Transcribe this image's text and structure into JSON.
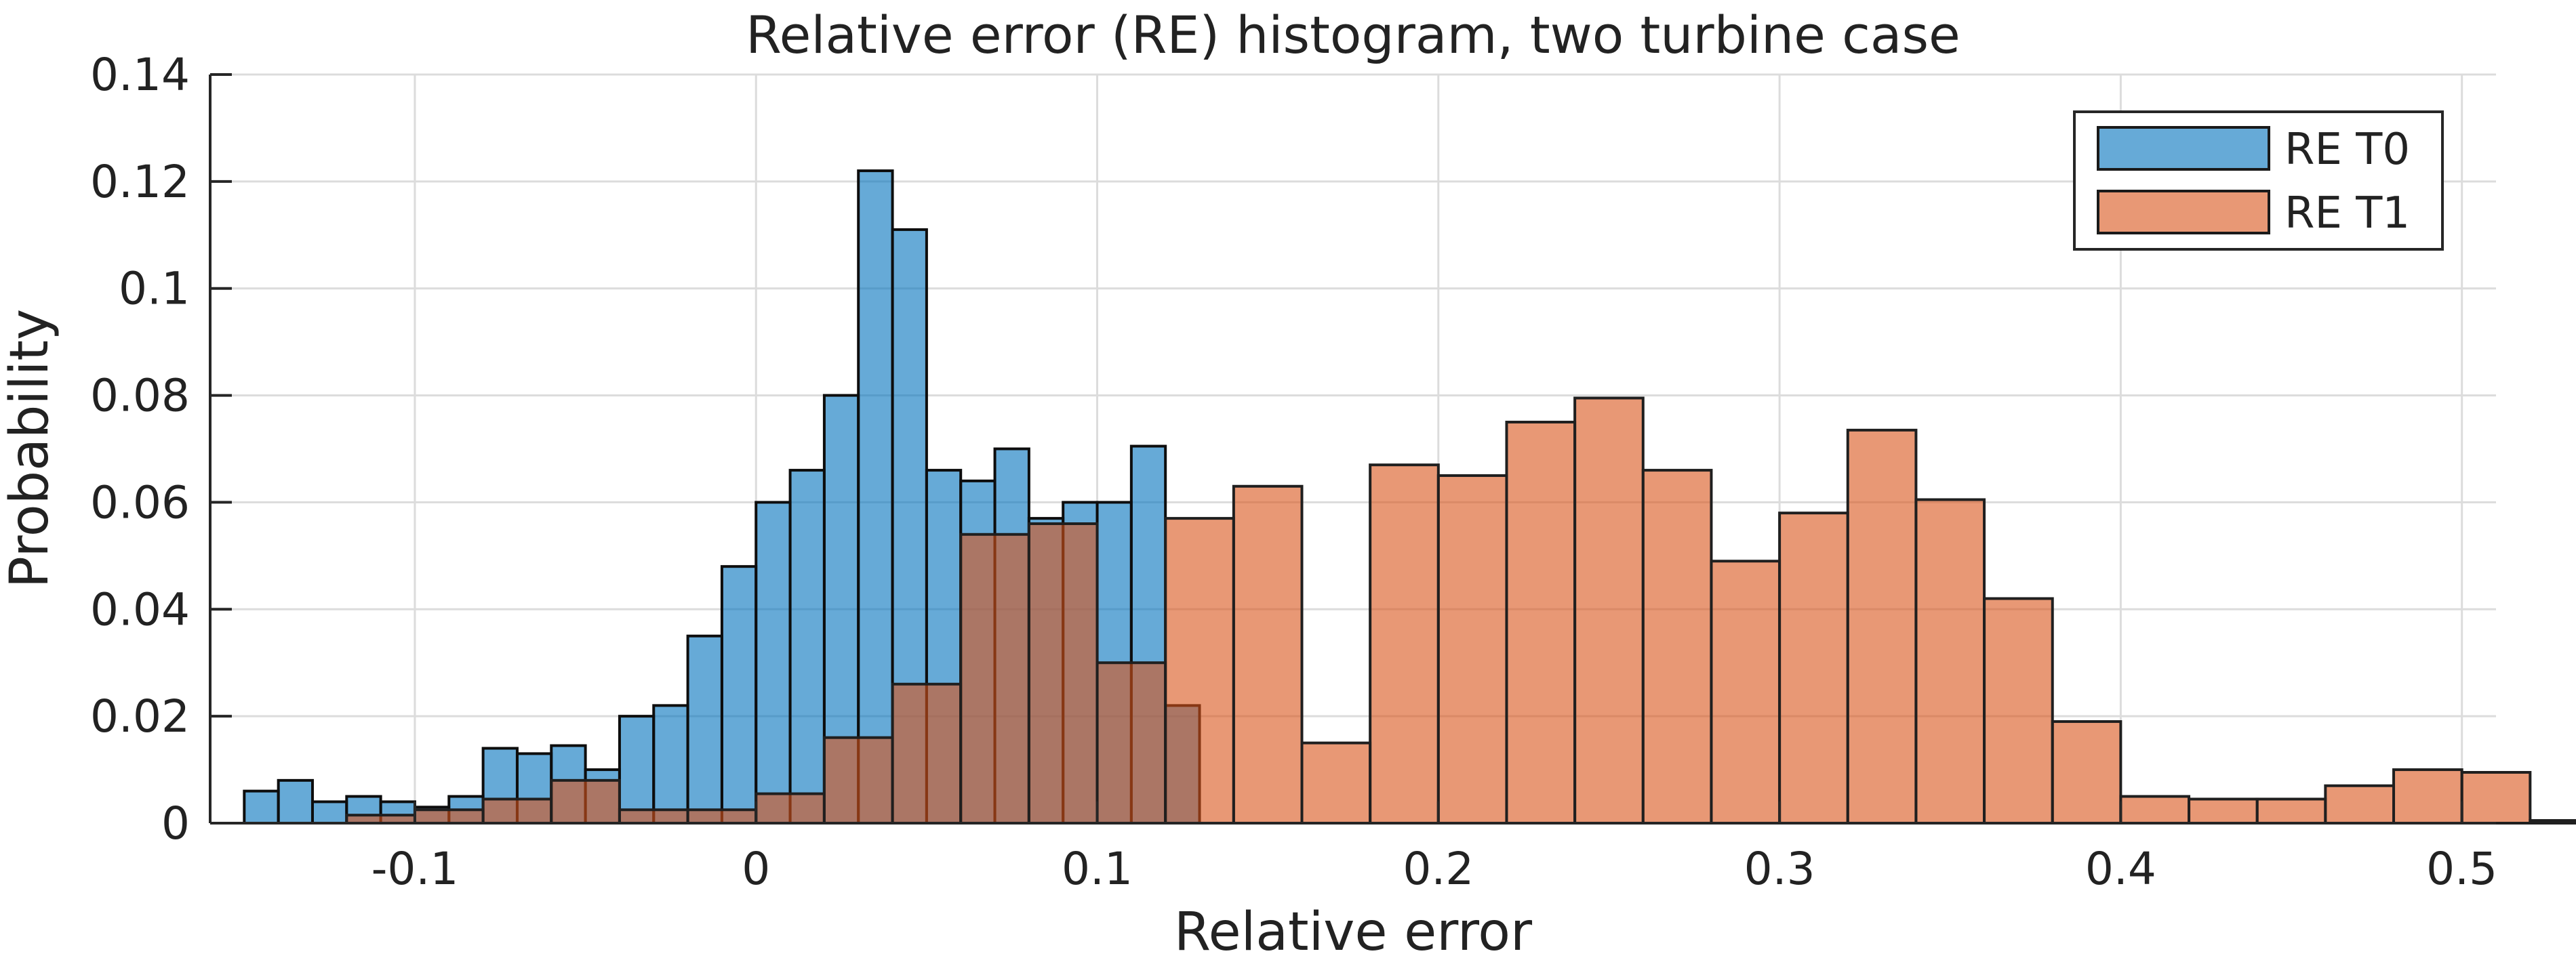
{
  "chart_data": {
    "type": "bar",
    "title": "Relative error (RE) histogram, two turbine case",
    "xlabel": "Relative error",
    "ylabel": "Probability",
    "xlim": [
      -0.16,
      0.51
    ],
    "ylim": [
      0,
      0.14
    ],
    "xticks": [
      -0.1,
      0,
      0.1,
      0.2,
      0.3,
      0.4,
      0.5
    ],
    "xtick_labels": [
      "-0.1",
      "0",
      "0.1",
      "0.2",
      "0.3",
      "0.4",
      "0.5"
    ],
    "yticks": [
      0,
      0.02,
      0.04,
      0.06,
      0.08,
      0.1,
      0.12,
      0.14
    ],
    "ytick_labels": [
      "0",
      "0.02",
      "0.04",
      "0.06",
      "0.08",
      "0.1",
      "0.12",
      "0.14"
    ],
    "grid": true,
    "legend_position": "top-right",
    "series": [
      {
        "name": "RE T0",
        "color": "#0072BD",
        "bin_width": 0.01,
        "bin_edges_start": -0.15,
        "values": [
          0.006,
          0.008,
          0.004,
          0.005,
          0.004,
          0.003,
          0.005,
          0.014,
          0.013,
          0.0145,
          0.01,
          0.02,
          0.022,
          0.035,
          0.048,
          0.06,
          0.066,
          0.08,
          0.122,
          0.111,
          0.066,
          0.064,
          0.07,
          0.057,
          0.06,
          0.06,
          0.0705,
          0.022
        ]
      },
      {
        "name": "RE T1",
        "color": "#D95319",
        "bin_width": 0.02,
        "bin_edges_start": -0.12,
        "values": [
          0.0015,
          0.0025,
          0.0045,
          0.008,
          0.0025,
          0.0025,
          0.0055,
          0.016,
          0.026,
          0.054,
          0.056,
          0.03,
          0.057,
          0.063,
          0.015,
          0.067,
          0.065,
          0.075,
          0.0795,
          0.066,
          0.049,
          0.058,
          0.0735,
          0.0605,
          0.042,
          0.019,
          0.005,
          0.0045,
          0.0045,
          0.007,
          0.01,
          0.0095,
          0.0005
        ]
      }
    ]
  }
}
